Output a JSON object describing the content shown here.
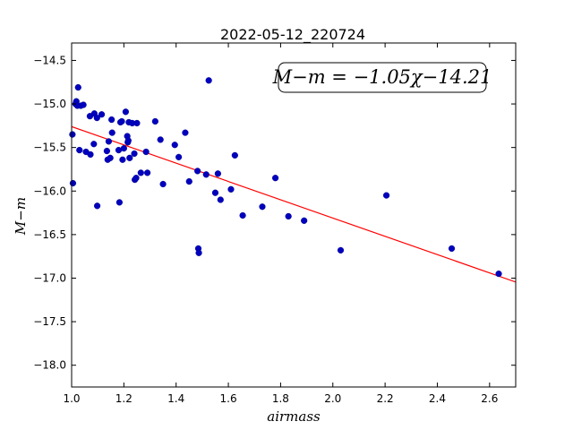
{
  "chart_data": {
    "type": "scatter",
    "title": "2022-05-12_220724",
    "xlabel": "airmass",
    "ylabel": "M−m",
    "xlim": [
      1.0,
      2.7
    ],
    "ylim": [
      -18.25,
      -14.3
    ],
    "y_inverted": true,
    "xticks": [
      1.0,
      1.2,
      1.4,
      1.6,
      1.8,
      2.0,
      2.2,
      2.4,
      2.6
    ],
    "xtick_labels": [
      "1.0",
      "1.2",
      "1.4",
      "1.6",
      "1.8",
      "2.0",
      "2.2",
      "2.4",
      "2.6"
    ],
    "yticks": [
      -14.5,
      -15.0,
      -15.5,
      -16.0,
      -16.5,
      -17.0,
      -17.5,
      -18.0
    ],
    "ytick_labels": [
      "−14.5",
      "−15.0",
      "−15.5",
      "−16.0",
      "−16.5",
      "−17.0",
      "−17.5",
      "−18.0"
    ],
    "grid": false,
    "annotation": "M−m = −1.05χ−14.21",
    "colors": {
      "points": "#0000bf",
      "fit": "#ff0000",
      "frame": "#000000"
    },
    "fit_line": {
      "slope": -1.05,
      "intercept": -14.21,
      "x_range": [
        1.0,
        2.7
      ]
    },
    "points": [
      [
        1.003,
        -15.35
      ],
      [
        1.005,
        -15.91
      ],
      [
        1.015,
        -15.0
      ],
      [
        1.018,
        -14.97
      ],
      [
        1.022,
        -15.02
      ],
      [
        1.025,
        -14.81
      ],
      [
        1.03,
        -15.53
      ],
      [
        1.035,
        -15.02
      ],
      [
        1.045,
        -15.01
      ],
      [
        1.055,
        -15.55
      ],
      [
        1.07,
        -15.14
      ],
      [
        1.072,
        -15.58
      ],
      [
        1.085,
        -15.46
      ],
      [
        1.087,
        -15.11
      ],
      [
        1.097,
        -15.16
      ],
      [
        1.098,
        -16.17
      ],
      [
        1.115,
        -15.12
      ],
      [
        1.135,
        -15.54
      ],
      [
        1.138,
        -15.64
      ],
      [
        1.142,
        -15.43
      ],
      [
        1.148,
        -15.62
      ],
      [
        1.153,
        -15.18
      ],
      [
        1.155,
        -15.33
      ],
      [
        1.18,
        -15.53
      ],
      [
        1.183,
        -16.13
      ],
      [
        1.187,
        -15.21
      ],
      [
        1.192,
        -15.2
      ],
      [
        1.195,
        -15.64
      ],
      [
        1.2,
        -15.51
      ],
      [
        1.207,
        -15.09
      ],
      [
        1.213,
        -15.37
      ],
      [
        1.215,
        -15.44
      ],
      [
        1.217,
        -15.42
      ],
      [
        1.219,
        -15.21
      ],
      [
        1.222,
        -15.62
      ],
      [
        1.232,
        -15.22
      ],
      [
        1.24,
        -15.57
      ],
      [
        1.242,
        -15.87
      ],
      [
        1.247,
        -15.85
      ],
      [
        1.25,
        -15.22
      ],
      [
        1.265,
        -15.79
      ],
      [
        1.285,
        -15.55
      ],
      [
        1.29,
        -15.79
      ],
      [
        1.32,
        -15.2
      ],
      [
        1.34,
        -15.41
      ],
      [
        1.35,
        -15.92
      ],
      [
        1.395,
        -15.47
      ],
      [
        1.41,
        -15.61
      ],
      [
        1.435,
        -15.33
      ],
      [
        1.45,
        -15.89
      ],
      [
        1.482,
        -15.77
      ],
      [
        1.485,
        -16.66
      ],
      [
        1.487,
        -16.71
      ],
      [
        1.515,
        -15.81
      ],
      [
        1.525,
        -14.73
      ],
      [
        1.55,
        -16.02
      ],
      [
        1.56,
        -15.8
      ],
      [
        1.57,
        -16.1
      ],
      [
        1.61,
        -15.98
      ],
      [
        1.625,
        -15.59
      ],
      [
        1.655,
        -16.28
      ],
      [
        1.73,
        -16.18
      ],
      [
        1.78,
        -15.85
      ],
      [
        1.83,
        -16.29
      ],
      [
        1.89,
        -16.34
      ],
      [
        2.03,
        -16.68
      ],
      [
        2.205,
        -16.05
      ],
      [
        2.455,
        -16.66
      ],
      [
        2.635,
        -16.95
      ]
    ]
  }
}
